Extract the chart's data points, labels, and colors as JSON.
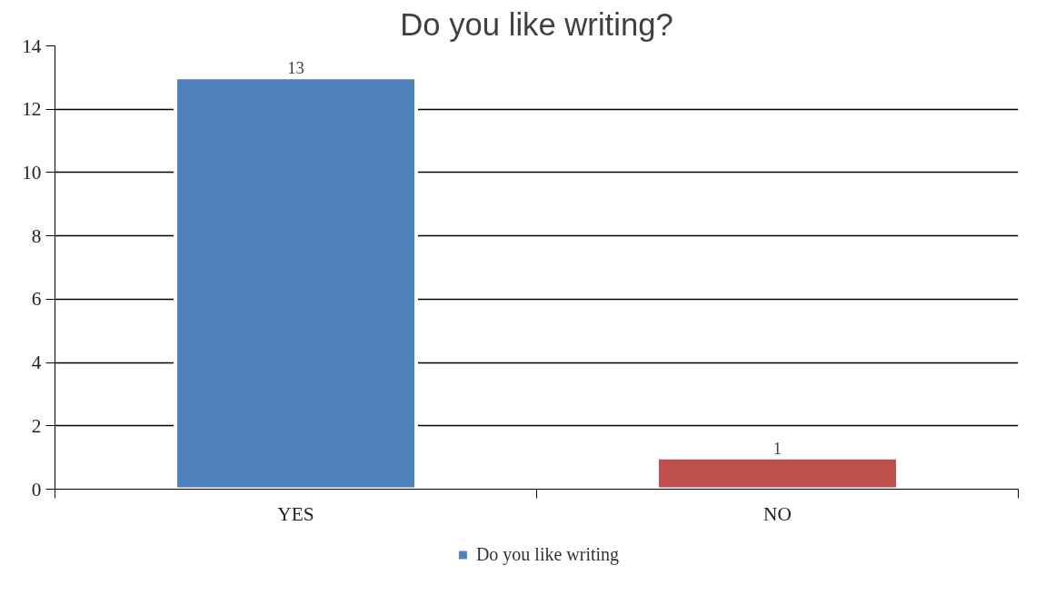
{
  "chart_data": {
    "type": "bar",
    "title": "Do you like writing?",
    "categories": [
      "YES",
      "NO"
    ],
    "series": [
      {
        "name": "Do you like writing",
        "colors": [
          "#4f81bd",
          "#c0504d"
        ],
        "values": [
          13,
          1
        ]
      }
    ],
    "ylim": [
      0,
      14
    ],
    "yticks": [
      0,
      2,
      4,
      6,
      8,
      10,
      12,
      14
    ],
    "grid": "y",
    "legend": "bottom",
    "data_labels": true
  }
}
